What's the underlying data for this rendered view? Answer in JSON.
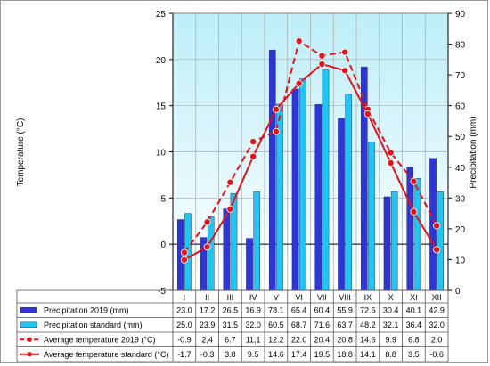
{
  "chart_data": {
    "type": "bar+line",
    "categories": [
      "I",
      "II",
      "III",
      "IV",
      "V",
      "VI",
      "VII",
      "VIII",
      "IX",
      "X",
      "XI",
      "XII"
    ],
    "y_left": {
      "label": "Temperature (°C)",
      "range": [
        -5,
        25
      ],
      "ticks": [
        "-5",
        "0",
        "5",
        "10",
        "15",
        "20",
        "25"
      ]
    },
    "y_right": {
      "label": "Precipitation (mm)",
      "range": [
        0,
        90
      ],
      "ticks": [
        "0",
        "10",
        "20",
        "30",
        "40",
        "50",
        "60",
        "70",
        "80",
        "90"
      ]
    },
    "grid": true,
    "series": [
      {
        "name": "Precipitation 2019 (mm)",
        "kind": "bar",
        "axis": "right",
        "color": "#2f36d6",
        "values": [
          23.0,
          17.2,
          26.5,
          16.9,
          78.1,
          65.4,
          60.4,
          55.9,
          72.6,
          30.4,
          40.1,
          42.9
        ],
        "labels": [
          "23.0",
          "17.2",
          "26.5",
          "16.9",
          "78.1",
          "65.4",
          "60.4",
          "55.9",
          "72.6",
          "30.4",
          "40.1",
          "42.9"
        ]
      },
      {
        "name": "Precipitation standard (mm)",
        "kind": "bar",
        "axis": "right",
        "color": "#22c4f2",
        "values": [
          25.0,
          23.9,
          31.5,
          32.0,
          60.5,
          68.7,
          71.6,
          63.7,
          48.2,
          32.1,
          36.4,
          32.0
        ],
        "labels": [
          "25.0",
          "23.9",
          "31.5",
          "32.0",
          "60.5",
          "68.7",
          "71.6",
          "63.7",
          "48.2",
          "32.1",
          "36.4",
          "32.0"
        ]
      },
      {
        "name": "Average temperature 2019 (°C)",
        "kind": "line-dashed",
        "axis": "left",
        "color": "#e0141c",
        "values": [
          -0.9,
          2.4,
          6.7,
          11.1,
          12.2,
          22.0,
          20.4,
          20.8,
          14.6,
          9.9,
          6.8,
          2.0
        ],
        "labels": [
          "-0.9",
          "2,4",
          "6.7",
          "11,1",
          "12.2",
          "22.0",
          "20.4",
          "20.8",
          "14.6",
          "9.9",
          "6.8",
          "2.0"
        ]
      },
      {
        "name": "Average temperature standard (°C)",
        "kind": "line-solid",
        "axis": "left",
        "color": "#e0141c",
        "values": [
          -1.7,
          -0.3,
          3.8,
          9.5,
          14.6,
          17.4,
          19.5,
          18.8,
          14.1,
          8.8,
          3.5,
          -0.6
        ],
        "labels": [
          "-1.7",
          "-0.3",
          "3.8",
          "9.5",
          "14.6",
          "17.4",
          "19.5",
          "18.8",
          "14.1",
          "8.8",
          "3.5",
          "-0.6"
        ]
      }
    ]
  }
}
